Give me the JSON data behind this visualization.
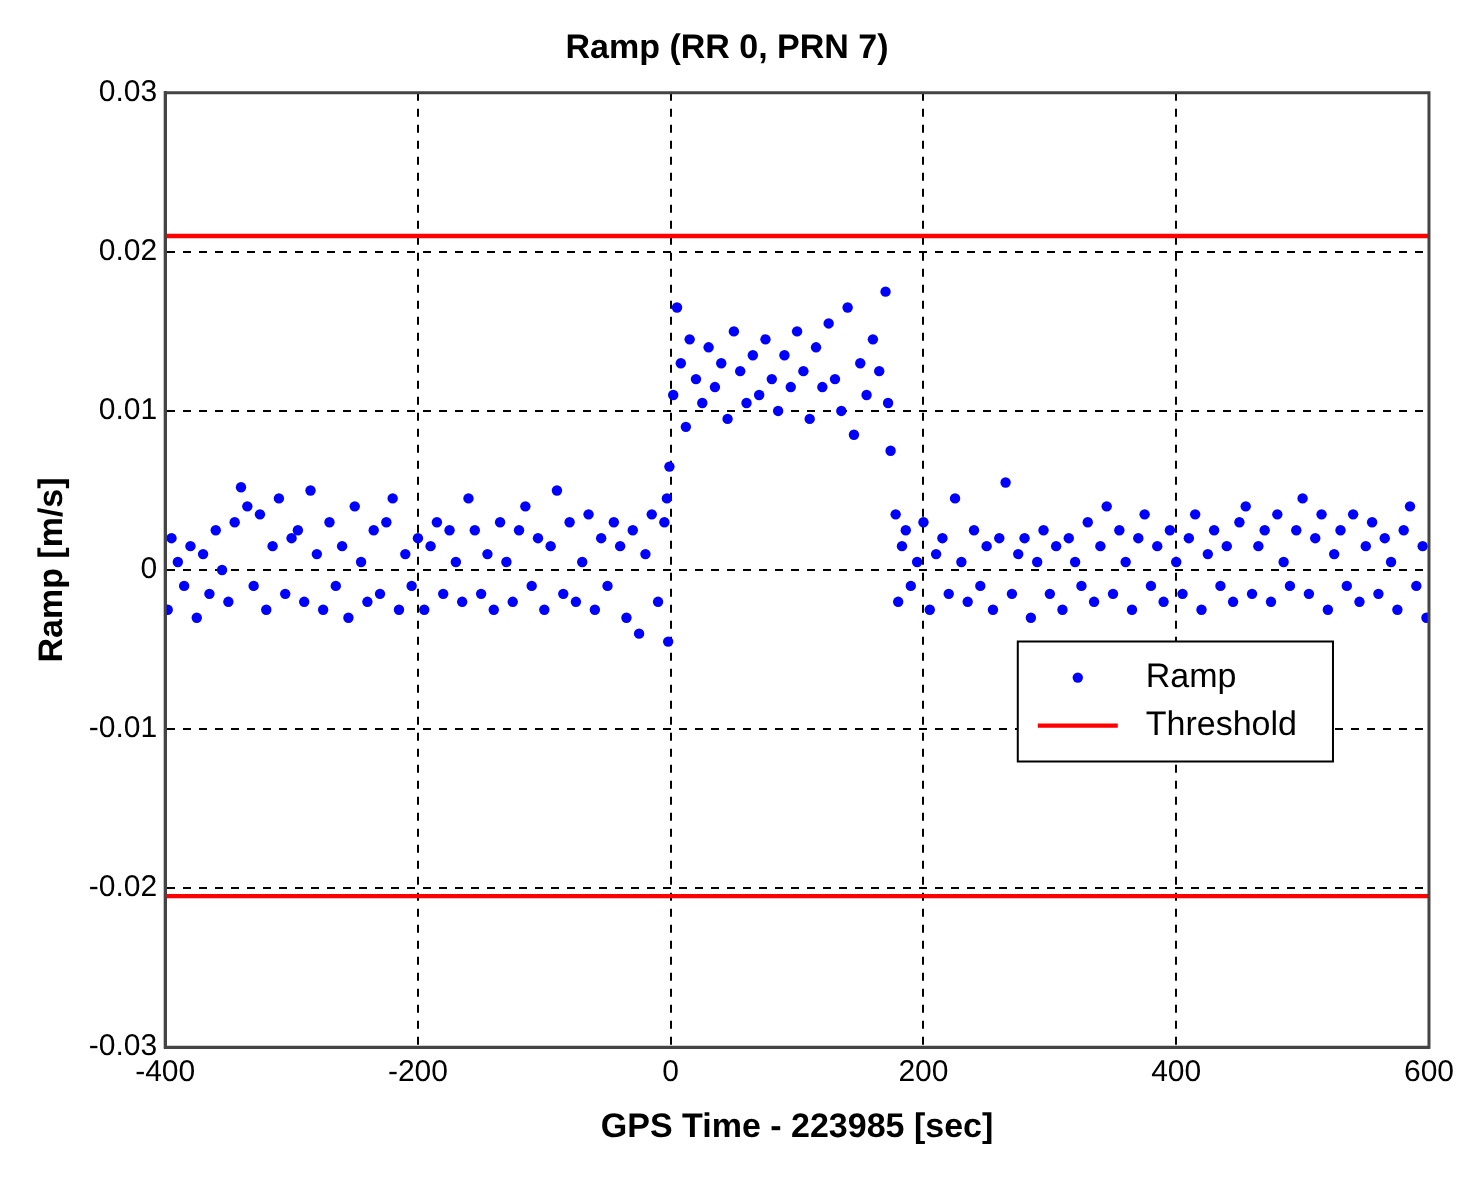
{
  "chart_data": {
    "type": "scatter",
    "title": "Ramp (RR 0, PRN 7)",
    "xlabel": "GPS Time - 223985 [sec]",
    "ylabel": "Ramp [m/s]",
    "xlim": [
      -400,
      600
    ],
    "xticks": [
      -400,
      -200,
      0,
      200,
      400,
      600
    ],
    "ylim": [
      -0.03,
      0.03
    ],
    "yticks": [
      -0.03,
      -0.02,
      -0.01,
      0,
      0.01,
      0.02,
      0.03
    ],
    "grid": true,
    "legend": "bottom right",
    "series": [
      {
        "name": "Ramp",
        "type": "scatter",
        "marker": "circle",
        "color": "#0000ff",
        "x": [
          -398,
          -395,
          -390,
          -385,
          -380,
          -375,
          -370,
          -365,
          -360,
          -355,
          -350,
          -345,
          -340,
          -335,
          -330,
          -325,
          -320,
          -315,
          -310,
          -305,
          -300,
          -295,
          -290,
          -285,
          -280,
          -275,
          -270,
          -265,
          -260,
          -255,
          -250,
          -245,
          -240,
          -235,
          -230,
          -225,
          -220,
          -215,
          -210,
          -205,
          -200,
          -195,
          -190,
          -185,
          -180,
          -175,
          -170,
          -165,
          -160,
          -155,
          -150,
          -145,
          -140,
          -135,
          -130,
          -125,
          -120,
          -115,
          -110,
          -105,
          -100,
          -95,
          -90,
          -85,
          -80,
          -75,
          -70,
          -65,
          -60,
          -55,
          -50,
          -45,
          -40,
          -35,
          -30,
          -25,
          -20,
          -15,
          -10,
          -5,
          -3,
          -2,
          -1,
          2,
          5,
          8,
          12,
          15,
          20,
          25,
          30,
          35,
          40,
          45,
          50,
          55,
          60,
          65,
          70,
          75,
          80,
          85,
          90,
          95,
          100,
          105,
          110,
          115,
          120,
          125,
          130,
          135,
          140,
          145,
          150,
          155,
          160,
          165,
          170,
          172,
          174,
          178,
          180,
          183,
          186,
          190,
          195,
          200,
          205,
          210,
          215,
          220,
          225,
          230,
          235,
          240,
          245,
          250,
          255,
          260,
          265,
          270,
          275,
          280,
          285,
          290,
          295,
          300,
          305,
          310,
          315,
          320,
          325,
          330,
          335,
          340,
          345,
          350,
          355,
          360,
          365,
          370,
          375,
          380,
          385,
          390,
          395,
          400,
          405,
          410,
          415,
          420,
          425,
          430,
          435,
          440,
          445,
          450,
          455,
          460,
          465,
          470,
          475,
          480,
          485,
          490,
          495,
          500,
          505,
          510,
          515,
          520,
          525,
          530,
          535,
          540,
          545,
          550,
          555,
          560,
          565,
          570,
          575,
          580,
          585,
          590,
          595,
          598
        ],
        "values": [
          -0.0025,
          0.002,
          0.0005,
          -0.001,
          0.0015,
          -0.003,
          0.001,
          -0.0015,
          0.0025,
          0,
          -0.002,
          0.003,
          0.0052,
          0.004,
          -0.001,
          0.0035,
          -0.0025,
          0.0015,
          0.0045,
          -0.0015,
          0.002,
          0.0025,
          -0.002,
          0.005,
          0.001,
          -0.0025,
          0.003,
          -0.001,
          0.0015,
          -0.003,
          0.004,
          0.0005,
          -0.002,
          0.0025,
          -0.0015,
          0.003,
          0.0045,
          -0.0025,
          0.001,
          -0.001,
          0.002,
          -0.0025,
          0.0015,
          0.003,
          -0.0015,
          0.0025,
          0.0005,
          -0.002,
          0.0045,
          0.0025,
          -0.0015,
          0.001,
          -0.0025,
          0.003,
          0.0005,
          -0.002,
          0.0025,
          0.004,
          -0.001,
          0.002,
          -0.0025,
          0.0015,
          0.005,
          -0.0015,
          0.003,
          -0.002,
          0.0005,
          0.0035,
          -0.0025,
          0.002,
          -0.001,
          0.003,
          0.0015,
          -0.003,
          0.0025,
          -0.004,
          0.001,
          0.0035,
          -0.002,
          0.003,
          0.0045,
          -0.0045,
          0.0065,
          0.011,
          0.0165,
          0.013,
          0.009,
          0.0145,
          0.012,
          0.0105,
          0.014,
          0.0115,
          0.013,
          0.0095,
          0.015,
          0.0125,
          0.0105,
          0.0135,
          0.011,
          0.0145,
          0.012,
          0.01,
          0.0135,
          0.0115,
          0.015,
          0.0125,
          0.0095,
          0.014,
          0.0115,
          0.0155,
          0.012,
          0.01,
          0.0165,
          0.0085,
          0.013,
          0.011,
          0.0145,
          0.0125,
          0.0175,
          0.0105,
          0.0075,
          0.0035,
          -0.002,
          0.0015,
          0.0025,
          -0.001,
          0.0005,
          0.003,
          -0.0025,
          0.001,
          0.002,
          -0.0015,
          0.0045,
          0.0005,
          -0.002,
          0.0025,
          -0.001,
          0.0015,
          -0.0025,
          0.002,
          0.0055,
          -0.0015,
          0.001,
          0.002,
          -0.003,
          0.0005,
          0.0025,
          -0.0015,
          0.0015,
          -0.0025,
          0.002,
          0.0005,
          -0.001,
          0.003,
          -0.002,
          0.0015,
          0.004,
          -0.0015,
          0.0025,
          0.0005,
          -0.0025,
          0.002,
          0.0035,
          -0.001,
          0.0015,
          -0.002,
          0.0025,
          0.0005,
          -0.0015,
          0.002,
          0.0035,
          -0.0025,
          0.001,
          0.0025,
          -0.001,
          0.0015,
          -0.002,
          0.003,
          0.004,
          -0.0015,
          0.0015,
          0.0025,
          -0.002,
          0.0035,
          0.0005,
          -0.001,
          0.0025,
          0.0045,
          -0.0015,
          0.002,
          0.0035,
          -0.0025,
          0.001,
          0.0025,
          -0.001,
          0.0035,
          -0.002,
          0.0015,
          0.003,
          -0.0015,
          0.002,
          0.0005,
          -0.0025,
          0.0025,
          0.004,
          -0.001,
          0.0015,
          -0.003
        ]
      },
      {
        "name": "Threshold",
        "type": "line",
        "color": "#ff0000",
        "x": [
          -400,
          600
        ],
        "values": [
          0.021,
          0.021
        ]
      },
      {
        "type": "line",
        "color": "#ff0000",
        "x": [
          -400,
          600
        ],
        "values": [
          -0.0205,
          -0.0205
        ]
      }
    ]
  }
}
